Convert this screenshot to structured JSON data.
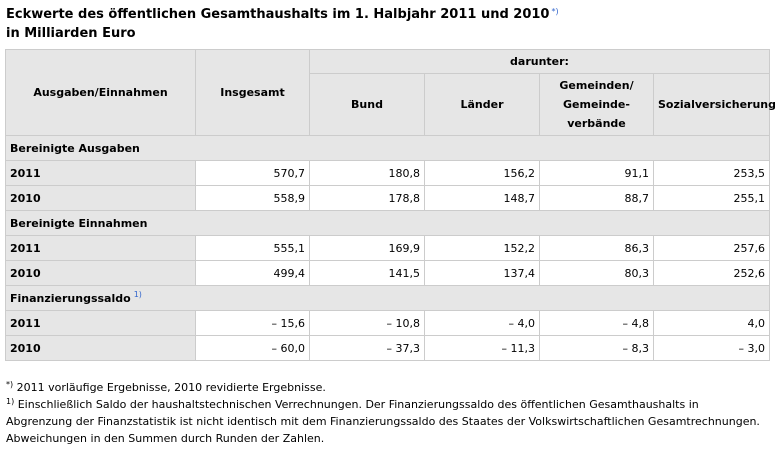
{
  "title": {
    "line1": "Eckwerte des öffentlichen Gesamthaushalts im 1. Halbjahr 2011 und 2010",
    "line1_ref": "*)",
    "line2": "in Milliarden Euro"
  },
  "table": {
    "header": {
      "col0": "Ausgaben/Einnahmen",
      "col1": "Insgesamt",
      "group": "darunter:",
      "col2": "Bund",
      "col3": "Länder",
      "col4_line1": "Gemeinden/",
      "col4_line2": "Gemeinde-",
      "col4_line3": "verbände",
      "col5": "Sozialversicherung"
    },
    "sections": [
      {
        "label": "Bereinigte Ausgaben",
        "ref": "",
        "rows": [
          {
            "year": "2011",
            "values": [
              "570,7",
              "180,8",
              "156,2",
              "91,1",
              "253,5"
            ]
          },
          {
            "year": "2010",
            "values": [
              "558,9",
              "178,8",
              "148,7",
              "88,7",
              "255,1"
            ]
          }
        ]
      },
      {
        "label": "Bereinigte Einnahmen",
        "ref": "",
        "rows": [
          {
            "year": "2011",
            "values": [
              "555,1",
              "169,9",
              "152,2",
              "86,3",
              "257,6"
            ]
          },
          {
            "year": "2010",
            "values": [
              "499,4",
              "141,5",
              "137,4",
              "80,3",
              "252,6"
            ]
          }
        ]
      },
      {
        "label": "Finanzierungssaldo",
        "ref": "1)",
        "rows": [
          {
            "year": "2011",
            "values": [
              "– 15,6",
              "– 10,8",
              "– 4,0",
              "– 4,8",
              "4,0"
            ]
          },
          {
            "year": "2010",
            "values": [
              "– 60,0",
              "– 37,3",
              "– 11,3",
              "– 8,3",
              "– 3,0"
            ]
          }
        ]
      }
    ]
  },
  "footnotes": {
    "star_mark": "*)",
    "star_text": "2011 vorläufige Ergebnisse, 2010 revidierte Ergebnisse.",
    "one_mark": "1)",
    "one_text_line1": "Einschließlich Saldo der haushaltstechnischen Verrechnungen. Der Finanzierungssaldo des öffentlichen Gesamthaushalts in",
    "one_text_line2": "Abgrenzung der Finanzstatistik ist nicht identisch mit dem Finanzierungssaldo des Staates der Volkswirtschaftlichen Gesamtrechnungen.",
    "one_text_line3": "Abweichungen in den Summen durch Runden der Zahlen."
  }
}
